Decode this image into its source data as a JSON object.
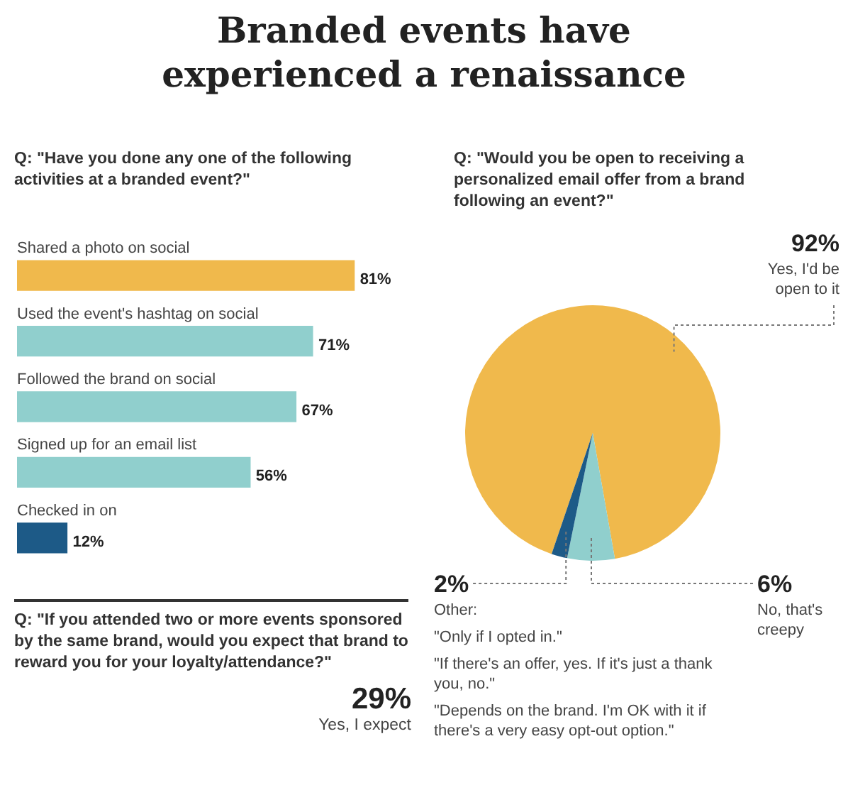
{
  "chart_data": [
    {
      "type": "other",
      "title": "Branded events have experienced a renaissance"
    },
    {
      "type": "bar",
      "orientation": "horizontal",
      "subtitle": "Q: \"Have you done any one of the following activities at a branded event?\"",
      "categories": [
        "Shared a photo on social",
        "Used the event's hashtag on social",
        "Followed the brand on social",
        "Signed up for an email list",
        "Checked in on"
      ],
      "values": [
        81,
        71,
        67,
        56,
        12
      ],
      "colors": [
        "#f0b94c",
        "#90cfcd",
        "#90cfcd",
        "#90cfcd",
        "#1d5a87"
      ],
      "value_labels": [
        "81%",
        "71%",
        "67%",
        "56%",
        "12%"
      ]
    },
    {
      "type": "pie",
      "subtitle": "Q: \"Would you be open to receiving a personalized email offer from a brand following an event?\"",
      "categories": [
        "Yes, I'd be open to it",
        "No, that's creepy",
        null
      ],
      "values": [
        92,
        6,
        2
      ],
      "colors": [
        "#f0b94c",
        "#90cfcd",
        "#1d5a87"
      ],
      "value_labels": [
        "92%",
        "6%",
        "2%"
      ],
      "annotations": [
        "Other:",
        "\"Only if I opted in.\"",
        "\"If there's an offer, yes. If it's just a thank you, no.\"",
        "\"Depends on the brand. I'm OK with it if there's a very easy opt-out option.\""
      ]
    },
    {
      "type": "other",
      "subtitle": "Q: \"If you attended two or more events sponsored by the same brand, would you expect that brand to reward you for your loyalty/attendance?\"",
      "annotations": [
        "29%",
        "Yes, I expect"
      ]
    }
  ]
}
